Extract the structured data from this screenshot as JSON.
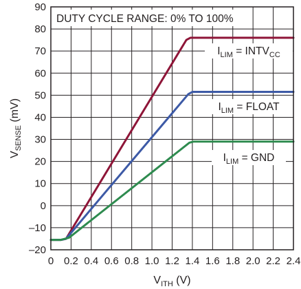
{
  "chart_data": {
    "type": "line",
    "xlabel": {
      "main": "V",
      "sub": "ITH",
      "unit": " (V)"
    },
    "ylabel": {
      "main": "V",
      "sub": "SENSE",
      "unit": " (mV)"
    },
    "xlim": [
      0,
      2.4
    ],
    "ylim": [
      -20,
      90
    ],
    "xticks": [
      "0",
      "0.2",
      "0.4",
      "0.6",
      "0.8",
      "1.0",
      "1.2",
      "1.4",
      "1.6",
      "1.8",
      "2.0",
      "2.2",
      "2.4"
    ],
    "xtick_values": [
      0,
      0.2,
      0.4,
      0.6,
      0.8,
      1.0,
      1.2,
      1.4,
      1.6,
      1.8,
      2.0,
      2.2,
      2.4
    ],
    "yticks": [
      "–20",
      "–10",
      "0",
      "10",
      "20",
      "30",
      "40",
      "50",
      "60",
      "70",
      "80",
      "90"
    ],
    "ytick_values": [
      -20,
      -10,
      0,
      10,
      20,
      30,
      40,
      50,
      60,
      70,
      80,
      90
    ],
    "grid": true,
    "annotation": "DUTY CYCLE RANGE: 0% TO 100%",
    "series": [
      {
        "label": {
          "pre": "I",
          "sub": "LIM",
          "mid": " = INTV",
          "sub2": "CC"
        },
        "color": "#8e1538",
        "x": [
          0,
          0.1,
          0.15,
          1.34,
          1.38,
          2.4
        ],
        "y": [
          -15.5,
          -15.5,
          -15,
          75,
          76,
          76
        ]
      },
      {
        "label": {
          "pre": "I",
          "sub": "LIM",
          "mid": " = FLOAT",
          "sub2": ""
        },
        "color": "#3d5aa6",
        "x": [
          0,
          0.1,
          0.15,
          1.36,
          1.4,
          2.4
        ],
        "y": [
          -15.5,
          -15.5,
          -15,
          50.5,
          51.5,
          51.5
        ]
      },
      {
        "label": {
          "pre": "I",
          "sub": "LIM",
          "mid": " = GND",
          "sub2": ""
        },
        "color": "#2e8b4f",
        "x": [
          0,
          0.1,
          0.18,
          1.37,
          1.41,
          2.4
        ],
        "y": [
          -15.5,
          -15.5,
          -14.5,
          28.5,
          29,
          29
        ]
      }
    ]
  }
}
